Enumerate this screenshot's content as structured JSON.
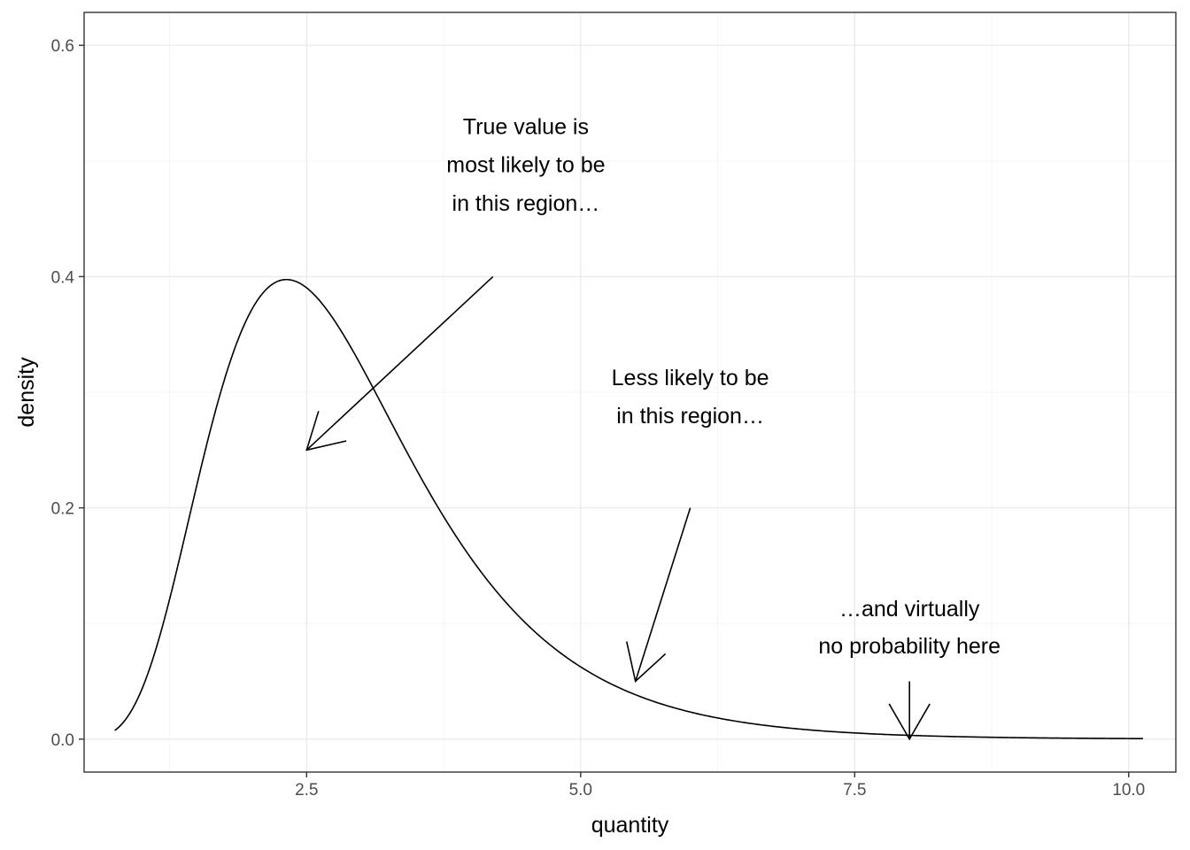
{
  "chart_data": {
    "type": "line",
    "title": "",
    "xlabel": "quantity",
    "ylabel": "density",
    "xlim": [
      0.47,
      10.43
    ],
    "ylim": [
      -0.0285,
      0.6285
    ],
    "x_ticks": [
      2.5,
      5.0,
      7.5,
      10.0
    ],
    "x_tick_labels": [
      "2.5",
      "5.0",
      "7.5",
      "10.0"
    ],
    "y_ticks": [
      0.0,
      0.2,
      0.4,
      0.6
    ],
    "y_tick_labels": [
      "0.0",
      "0.2",
      "0.4",
      "0.6"
    ],
    "grid": true,
    "distribution": {
      "kind": "lognormal",
      "meanlog": 1.0,
      "sdlog": 0.4,
      "x_range": [
        0.75,
        10.13
      ]
    },
    "series": [
      {
        "x": [
          0.75,
          1.0,
          1.25,
          1.5,
          1.75,
          2.0,
          2.25,
          2.5,
          2.75,
          3.0,
          3.5,
          4.0,
          4.5,
          5.0,
          5.5,
          6.0,
          7.0,
          8.0,
          9.0,
          10.13
        ],
        "y": [
          0.006,
          0.044,
          0.128,
          0.234,
          0.322,
          0.376,
          0.397,
          0.393,
          0.371,
          0.338,
          0.265,
          0.196,
          0.142,
          0.1,
          0.07,
          0.049,
          0.024,
          0.011,
          0.006,
          0.002
        ]
      }
    ],
    "annotations": [
      {
        "lines": [
          "True value is",
          "most likely to be",
          "in this region…"
        ],
        "text_x": 4.5,
        "text_y": [
          0.53,
          0.497,
          0.464
        ],
        "arrow_from": [
          4.2,
          0.4
        ],
        "arrow_to": [
          2.5,
          0.25
        ]
      },
      {
        "lines": [
          "Less likely to be",
          "in this region…"
        ],
        "text_x": 6.0,
        "text_y": [
          0.313,
          0.28
        ],
        "arrow_from": [
          6.0,
          0.2
        ],
        "arrow_to": [
          5.5,
          0.05
        ]
      },
      {
        "lines": [
          "…and virtually",
          "no probability here"
        ],
        "text_x": 8.0,
        "text_y": [
          0.113,
          0.081
        ],
        "arrow_from": [
          8.0,
          0.05
        ],
        "arrow_to": [
          8.0,
          0.0
        ]
      }
    ]
  }
}
